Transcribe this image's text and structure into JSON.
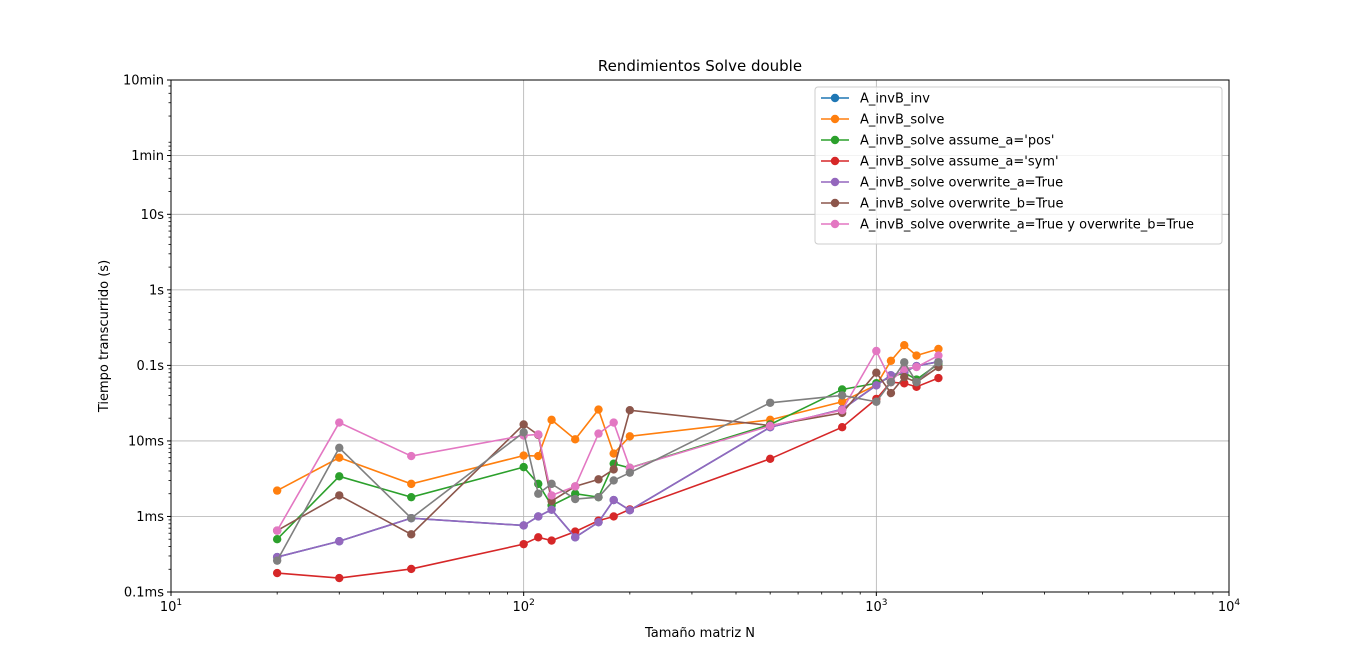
{
  "chart_data": {
    "type": "line",
    "title": "Rendimientos Solve double",
    "xlabel": "Tamaño matriz N",
    "ylabel": "Tiempo transcurrido (s)",
    "xscale": "log",
    "yscale": "log",
    "xlim": [
      10,
      10000
    ],
    "ylim": [
      0.0001,
      600
    ],
    "grid": true,
    "legend_position": "top-right",
    "x_ticks": [
      {
        "value": 10,
        "base": "10",
        "exp": "1"
      },
      {
        "value": 100,
        "base": "10",
        "exp": "2"
      },
      {
        "value": 1000,
        "base": "10",
        "exp": "3"
      },
      {
        "value": 10000,
        "base": "10",
        "exp": "4"
      }
    ],
    "y_ticks": [
      {
        "value": 0.0001,
        "label": "0.1ms"
      },
      {
        "value": 0.001,
        "label": "1ms"
      },
      {
        "value": 0.01,
        "label": "10ms"
      },
      {
        "value": 0.1,
        "label": "0.1s"
      },
      {
        "value": 1,
        "label": "1s"
      },
      {
        "value": 10,
        "label": "10s"
      },
      {
        "value": 60,
        "label": "1min"
      },
      {
        "value": 600,
        "label": "10min"
      }
    ],
    "x": [
      20,
      30,
      48,
      100,
      110,
      120,
      140,
      163,
      180,
      200,
      500,
      800,
      1000,
      1100,
      1200,
      1300,
      1500
    ],
    "series": [
      {
        "name": "A_invB_inv",
        "color": "#1f77b4",
        "values": [
          0.00029,
          0.00047,
          0.00095,
          0.00076,
          0.001,
          0.00123,
          0.00053,
          0.00084,
          0.00165,
          0.00121,
          0.0152,
          0.0262,
          0.0545,
          0.074,
          0.082,
          0.098,
          0.112
        ]
      },
      {
        "name": "A_invB_solve",
        "color": "#ff7f0e",
        "values": [
          0.0022,
          0.006,
          0.0027,
          0.0064,
          0.0063,
          0.019,
          0.0105,
          0.026,
          0.0068,
          0.0115,
          0.019,
          0.033,
          0.055,
          0.115,
          0.185,
          0.135,
          0.165
        ]
      },
      {
        "name": "A_invB_solve assume_a='pos'",
        "color": "#2ca02c",
        "values": [
          0.0005,
          0.0034,
          0.0018,
          0.0045,
          0.0027,
          0.0014,
          0.002,
          0.0018,
          0.005,
          0.0044,
          0.0165,
          0.048,
          0.058,
          0.07,
          0.08,
          0.065,
          0.105
        ]
      },
      {
        "name": "A_invB_solve assume_a='sym'",
        "color": "#d62728",
        "values": [
          0.000178,
          0.000153,
          0.000202,
          0.00043,
          0.00053,
          0.00048,
          0.00063,
          0.00088,
          0.001,
          0.00124,
          0.0058,
          0.0152,
          0.036,
          0.06,
          0.058,
          0.052,
          0.068
        ]
      },
      {
        "name": "A_invB_solve overwrite_a=True",
        "color": "#9467bd",
        "values": [
          0.00029,
          0.00047,
          0.00095,
          0.00076,
          0.001,
          0.00123,
          0.00053,
          0.00084,
          0.00165,
          0.00121,
          0.0152,
          0.0262,
          0.0545,
          0.074,
          0.082,
          0.098,
          0.112
        ]
      },
      {
        "name": "A_invB_solve overwrite_b=True",
        "color": "#8c564b",
        "values": [
          0.00065,
          0.0019,
          0.00058,
          0.0165,
          0.012,
          0.0016,
          0.0025,
          0.0031,
          0.0042,
          0.0255,
          0.016,
          0.0235,
          0.08,
          0.043,
          0.07,
          0.06,
          0.095
        ]
      },
      {
        "name": "A_invB_solve overwrite_a=True y overwrite_b=True",
        "color": "#e377c2",
        "values": [
          0.00065,
          0.0175,
          0.0063,
          0.0118,
          0.0122,
          0.0019,
          0.0025,
          0.0125,
          0.0175,
          0.0044,
          0.0158,
          0.0255,
          0.155,
          0.063,
          0.09,
          0.095,
          0.135
        ]
      },
      {
        "name": "",
        "color": "#7f7f7f",
        "values": [
          0.00026,
          0.0081,
          0.00095,
          0.013,
          0.002,
          0.0027,
          0.0017,
          0.0018,
          0.003,
          0.0038,
          0.032,
          0.04,
          0.033,
          0.06,
          0.11,
          0.06,
          0.11
        ]
      }
    ]
  }
}
